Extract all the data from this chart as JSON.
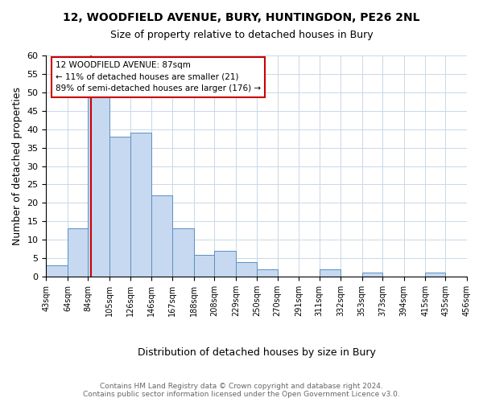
{
  "title_line1": "12, WOODFIELD AVENUE, BURY, HUNTINGDON, PE26 2NL",
  "title_line2": "Size of property relative to detached houses in Bury",
  "xlabel": "Distribution of detached houses by size in Bury",
  "ylabel": "Number of detached properties",
  "bin_edges": [
    43,
    64,
    84,
    105,
    126,
    146,
    167,
    188,
    208,
    229,
    250,
    270,
    291,
    311,
    332,
    353,
    373,
    394,
    415,
    435,
    456
  ],
  "bin_labels": [
    "43sqm",
    "64sqm",
    "84sqm",
    "105sqm",
    "126sqm",
    "146sqm",
    "167sqm",
    "188sqm",
    "208sqm",
    "229sqm",
    "250sqm",
    "270sqm",
    "291sqm",
    "311sqm",
    "332sqm",
    "353sqm",
    "373sqm",
    "394sqm",
    "415sqm",
    "435sqm",
    "456sqm"
  ],
  "counts": [
    3,
    13,
    49,
    38,
    39,
    22,
    13,
    6,
    7,
    4,
    2,
    0,
    0,
    2,
    0,
    1,
    0,
    0,
    1,
    0
  ],
  "bar_color": "#c6d9f0",
  "bar_edge_color": "#5a8fc3",
  "vline_x": 87,
  "vline_color": "#cc0000",
  "annotation_text": "12 WOODFIELD AVENUE: 87sqm\n← 11% of detached houses are smaller (21)\n89% of semi-detached houses are larger (176) →",
  "annotation_box_edge": "#cc0000",
  "ylim": [
    0,
    60
  ],
  "yticks": [
    0,
    5,
    10,
    15,
    20,
    25,
    30,
    35,
    40,
    45,
    50,
    55,
    60
  ],
  "footer_line1": "Contains HM Land Registry data © Crown copyright and database right 2024.",
  "footer_line2": "Contains public sector information licensed under the Open Government Licence v3.0.",
  "bg_color": "#ffffff",
  "grid_color": "#c8d8e8"
}
